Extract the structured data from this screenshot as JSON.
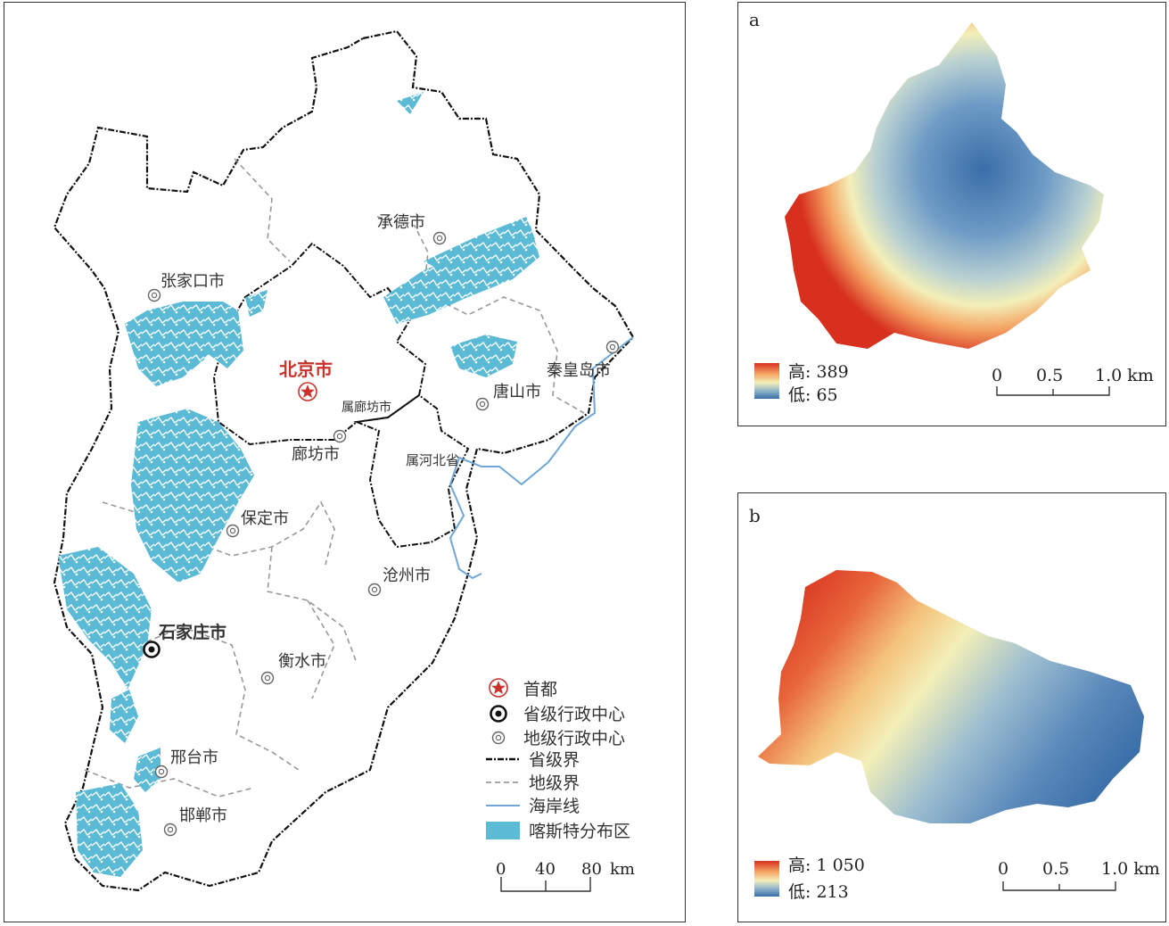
{
  "main_map": {
    "cities": [
      {
        "name": "承德市",
        "kind": "prefecture"
      },
      {
        "name": "张家口市",
        "kind": "prefecture"
      },
      {
        "name": "北京市",
        "kind": "capital"
      },
      {
        "name": "属廊坊市",
        "kind": "enclave"
      },
      {
        "name": "廊坊市",
        "kind": "prefecture"
      },
      {
        "name": "秦皇岛市",
        "kind": "prefecture"
      },
      {
        "name": "唐山市",
        "kind": "prefecture"
      },
      {
        "name": "属河北省",
        "kind": "enclave"
      },
      {
        "name": "保定市",
        "kind": "prefecture"
      },
      {
        "name": "沧州市",
        "kind": "prefecture"
      },
      {
        "name": "石家庄市",
        "kind": "provincial"
      },
      {
        "name": "衡水市",
        "kind": "prefecture"
      },
      {
        "name": "邢台市",
        "kind": "prefecture"
      },
      {
        "name": "邯郸市",
        "kind": "prefecture"
      }
    ],
    "legend": {
      "capital": "首都",
      "provincial_center": "省级行政中心",
      "prefecture_center": "地级行政中心",
      "province_boundary": "省级界",
      "prefecture_boundary": "地级界",
      "coastline": "海岸线",
      "karst_area": "喀斯特分布区"
    },
    "scale": {
      "t0": "0",
      "t1": "40",
      "t2": "80",
      "unit": "km"
    },
    "colors": {
      "karst": "#5bbad5",
      "capital": "#c8322a",
      "coast": "#6fa6d6"
    }
  },
  "panel_a": {
    "letter": "a",
    "legend_high": "高: 389",
    "legend_low": "低: 65",
    "scale": {
      "t0": "0",
      "t1": "0.5",
      "t2": "1.0 km"
    }
  },
  "panel_b": {
    "letter": "b",
    "legend_high": "高: 1 050",
    "legend_low": "低: 213",
    "scale": {
      "t0": "0",
      "t1": "0.5",
      "t2": "1.0 km"
    }
  },
  "dem_colors": [
    "#d7301f",
    "#f4a261",
    "#f3efb8",
    "#8fb4cc",
    "#3a6ea8"
  ]
}
